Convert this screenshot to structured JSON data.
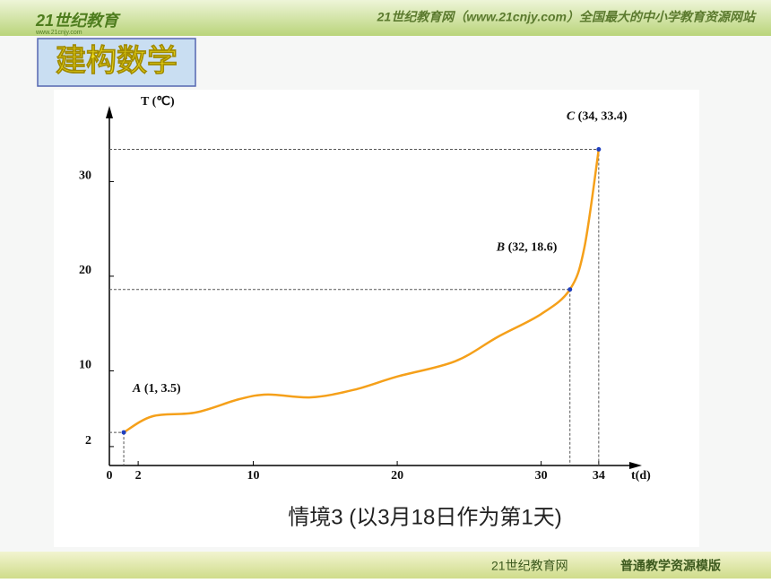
{
  "header": {
    "logo": "21世纪教育",
    "logo_url": "www.21cnjy.com",
    "slogan": "21世纪教育网（www.21cnjy.com）全国最大的中小学教育资源网站"
  },
  "section_title": "建构数学",
  "chart_data": {
    "type": "line",
    "x_label": "t(d)",
    "y_label": "T (℃)",
    "xlim": [
      0,
      37
    ],
    "ylim": [
      0,
      38
    ],
    "xticks": [
      0,
      2,
      10,
      20,
      30,
      34
    ],
    "yticks": [
      2,
      10,
      20,
      30
    ],
    "series": [
      {
        "color": "#f5a01a",
        "x": [
          1,
          3,
          6,
          9,
          11,
          14,
          17,
          20,
          24,
          27,
          30,
          32,
          33,
          34
        ],
        "values": [
          3.5,
          5.2,
          5.6,
          7,
          7.5,
          7.2,
          8,
          9.4,
          11,
          13.6,
          16,
          18.6,
          23,
          33.4
        ]
      }
    ],
    "points": [
      {
        "name": "A",
        "label": "(1, 3.5)",
        "x": 1,
        "y": 3.5
      },
      {
        "name": "B",
        "label": "(32, 18.6)",
        "x": 32,
        "y": 18.6
      },
      {
        "name": "C",
        "label": "(34, 33.4)",
        "x": 34,
        "y": 33.4
      }
    ],
    "point_color": "#1f3fbf"
  },
  "caption": "情境3 (以3月18日作为第1天)",
  "footer": {
    "site": "21世纪教育网",
    "template": "普通教学资源模版"
  }
}
